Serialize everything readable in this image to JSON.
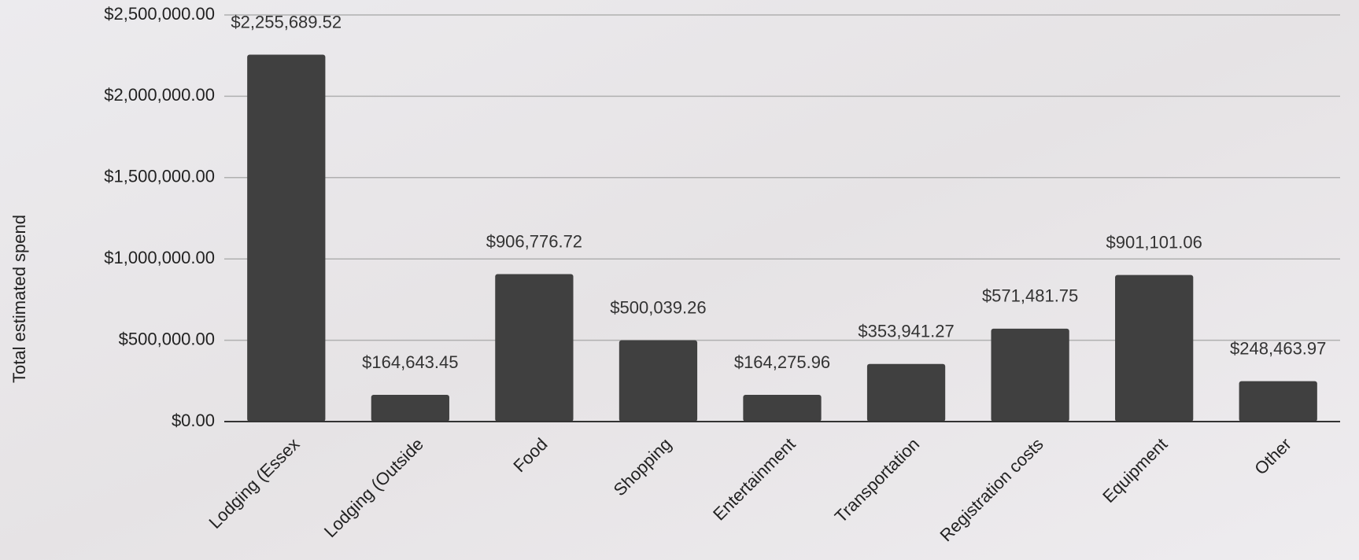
{
  "chart_data": {
    "type": "bar",
    "y_label": "Total estimated spend",
    "categories": [
      "Lodging (Essex",
      "Lodging (Outside",
      "Food",
      "Shopping",
      "Entertainment",
      "Transportation",
      "Registration costs",
      "Equipment",
      "Other"
    ],
    "values": [
      2255689.52,
      164643.45,
      906776.72,
      500039.26,
      164275.96,
      353941.27,
      571481.75,
      901101.06,
      248463.97
    ],
    "value_labels": [
      "$2,255,689.52",
      "$164,643.45",
      "$906,776.72",
      "$500,039.26",
      "$164,275.96",
      "$353,941.27",
      "$571,481.75",
      "$901,101.06",
      "$248,463.97"
    ],
    "color": "#404040",
    "ylim": [
      0,
      2500000
    ],
    "yticks": [
      {
        "value": 0,
        "label": "$0.00"
      },
      {
        "value": 500000,
        "label": "$500,000.00"
      },
      {
        "value": 1000000,
        "label": "$1,000,000.00"
      },
      {
        "value": 1500000,
        "label": "$1,500,000.00"
      },
      {
        "value": 2000000,
        "label": "$2,000,000.00"
      },
      {
        "value": 2500000,
        "label": "$2,500,000.00"
      }
    ],
    "grid": true
  }
}
